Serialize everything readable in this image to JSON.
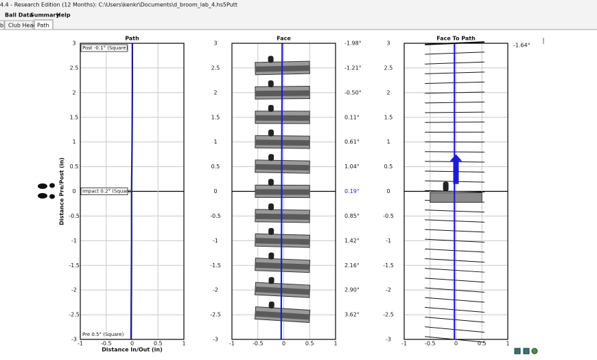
{
  "window": {
    "title": "4.4 - Research Edition (12 Months): C:\\Users\\kenkr\\Documents\\d_broom_lab_4.hs5Putt",
    "menu": [
      "Ball Data",
      "Summary",
      "Help"
    ],
    "tabs": [
      "b",
      "Club Head",
      "Path"
    ]
  },
  "chart_data": [
    {
      "type": "line",
      "title": "Path",
      "xlabel": "Distance In/Out (in)",
      "ylabel": "Distance Pre/Post (in)",
      "xlim": [
        -1,
        1
      ],
      "ylim": [
        -3,
        3
      ],
      "xticks": [
        -1,
        -0.5,
        0,
        0.5,
        1
      ],
      "yticks": [
        3,
        2.5,
        2,
        1.5,
        1,
        0.5,
        0,
        -0.5,
        -1,
        -1.5,
        -2,
        -2.5,
        -3
      ],
      "grid": true,
      "annotations": [
        "Post -0.1° (Square)",
        "Impact 0.2° (Square)",
        "Pre 0.5° (Square)"
      ],
      "line": {
        "color": "#1a1a9c",
        "x": [
          -0.02,
          -0.015,
          -0.01,
          -0.01,
          0.0,
          0.005,
          0.005
        ],
        "y": [
          -3,
          -2,
          -1,
          0,
          1,
          2,
          3
        ]
      }
    },
    {
      "type": "line",
      "title": "Face",
      "xlim": [
        -1,
        1
      ],
      "ylim": [
        -3,
        3
      ],
      "xticks": [
        -1,
        -0.5,
        0,
        0.5,
        1
      ],
      "yticks": [
        3,
        2.5,
        2,
        1.5,
        1,
        0.5,
        0,
        -0.5,
        -1,
        -1.5,
        -2,
        -2.5,
        -3
      ],
      "grid": true,
      "line": {
        "color": "#1c1cd8",
        "x": [
          -0.05,
          -0.03
        ],
        "y": [
          -3,
          3
        ]
      },
      "face_angles": {
        "y": [
          3,
          2.5,
          2,
          1.5,
          1,
          0.5,
          0,
          -0.5,
          -1,
          -1.5,
          -2,
          -2.5
        ],
        "values": [
          -1.98,
          -1.21,
          -0.5,
          0.11,
          0.61,
          1.04,
          0.19,
          0.85,
          1.42,
          2.16,
          2.9,
          3.62
        ],
        "value_labels": [
          "-1.98°",
          "-1.21°",
          "-0.50°",
          "0.11°",
          "0.61°",
          "1.04°",
          "0.19°",
          "0.85°",
          "1.42°",
          "2.16°",
          "2.90°",
          "3.62°"
        ],
        "label_colors": [
          "#111",
          "#111",
          "#111",
          "#111",
          "#111",
          "#111",
          "#1c1cd8",
          "#111",
          "#111",
          "#111",
          "#111",
          "#111"
        ]
      }
    },
    {
      "type": "line",
      "title": "Face To Path",
      "xlim": [
        -1,
        1
      ],
      "ylim": [
        -3,
        3
      ],
      "xticks": [
        -1,
        -0.5,
        0,
        0.5,
        1
      ],
      "yticks": [
        3,
        2.5,
        2,
        1.5,
        1,
        0.5,
        0,
        -0.5,
        -1,
        -1.5,
        -2,
        -2.5,
        -3
      ],
      "grid": true,
      "annotations": [
        "-1.64°"
      ],
      "line": {
        "color": "#1c1cd8",
        "x": [
          -0.03,
          -0.03
        ],
        "y": [
          -3,
          3
        ]
      },
      "arrow": {
        "color": "#1c1cd8",
        "x": 0,
        "y": [
          0.15,
          0.75
        ]
      },
      "face_lines": {
        "y": [
          3,
          2.8,
          2.6,
          2.4,
          2.2,
          2,
          1.8,
          1.6,
          1.4,
          1.2,
          1,
          0.8,
          0.6,
          0.4,
          0.2,
          0,
          -0.2,
          -0.4,
          -0.6,
          -0.8,
          -1,
          -1.2,
          -1.4,
          -1.6,
          -1.8,
          -2,
          -2.2,
          -2.4,
          -2.6,
          -2.8,
          -3
        ],
        "angles": [
          -1.64,
          -1.46,
          -1.29,
          -1.11,
          -0.93,
          -0.76,
          -0.58,
          -0.4,
          -0.23,
          -0.05,
          0.13,
          0.3,
          0.48,
          0.66,
          0.83,
          1.01,
          1.19,
          1.36,
          1.54,
          1.72,
          1.89,
          2.07,
          2.25,
          2.42,
          2.6,
          2.78,
          2.95,
          3.13,
          3.31,
          3.48,
          3.66
        ]
      }
    }
  ]
}
